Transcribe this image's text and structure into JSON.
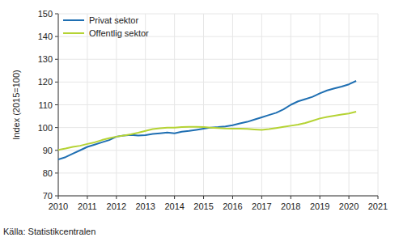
{
  "chart_data": {
    "type": "line",
    "y_label": "Index (2015=100)",
    "source": "Källa: Statistikcentralen",
    "x": [
      2010.0,
      2010.25,
      2010.5,
      2010.75,
      2011.0,
      2011.25,
      2011.5,
      2011.75,
      2012.0,
      2012.25,
      2012.5,
      2012.75,
      2013.0,
      2013.25,
      2013.5,
      2013.75,
      2014.0,
      2014.25,
      2014.5,
      2014.75,
      2015.0,
      2015.25,
      2015.5,
      2015.75,
      2016.0,
      2016.25,
      2016.5,
      2016.75,
      2017.0,
      2017.25,
      2017.5,
      2017.75,
      2018.0,
      2018.25,
      2018.5,
      2018.75,
      2019.0,
      2019.25,
      2019.5,
      2019.75,
      2020.0,
      2020.25
    ],
    "series": [
      {
        "name": "Privat sektor",
        "color": "#1f6fb2",
        "values": [
          86,
          87,
          88.5,
          90,
          91.5,
          92.5,
          93.5,
          94.5,
          96,
          96.5,
          96.8,
          96.5,
          96.7,
          97.2,
          97.5,
          97.8,
          97.5,
          98.2,
          98.5,
          99,
          99.5,
          100,
          100.2,
          100.5,
          101,
          101.8,
          102.5,
          103.5,
          104.5,
          105.5,
          106.5,
          108,
          110,
          111.5,
          112.5,
          113.5,
          115,
          116.3,
          117.2,
          118,
          119,
          120.5
        ]
      },
      {
        "name": "Offentlig sektor",
        "color": "#b5d334",
        "values": [
          90.2,
          90.8,
          91.5,
          92,
          92.8,
          93.5,
          94.5,
          95.3,
          96,
          96.5,
          97,
          97.7,
          98.5,
          99.3,
          99.7,
          100,
          100,
          100.2,
          100.3,
          100.3,
          100.2,
          100,
          99.8,
          99.6,
          99.5,
          99.5,
          99.4,
          99.2,
          99,
          99.3,
          99.8,
          100.3,
          100.8,
          101.3,
          102,
          103,
          104,
          104.7,
          105.2,
          105.7,
          106.2,
          107
        ]
      }
    ],
    "xlim": [
      2010,
      2021
    ],
    "xticks": [
      2010,
      2011,
      2012,
      2013,
      2014,
      2015,
      2016,
      2017,
      2018,
      2019,
      2020,
      2021
    ],
    "ylim": [
      70,
      150
    ],
    "yticks": [
      70,
      80,
      90,
      100,
      110,
      120,
      130,
      140,
      150
    ],
    "grid": true,
    "legend": "upper left"
  }
}
